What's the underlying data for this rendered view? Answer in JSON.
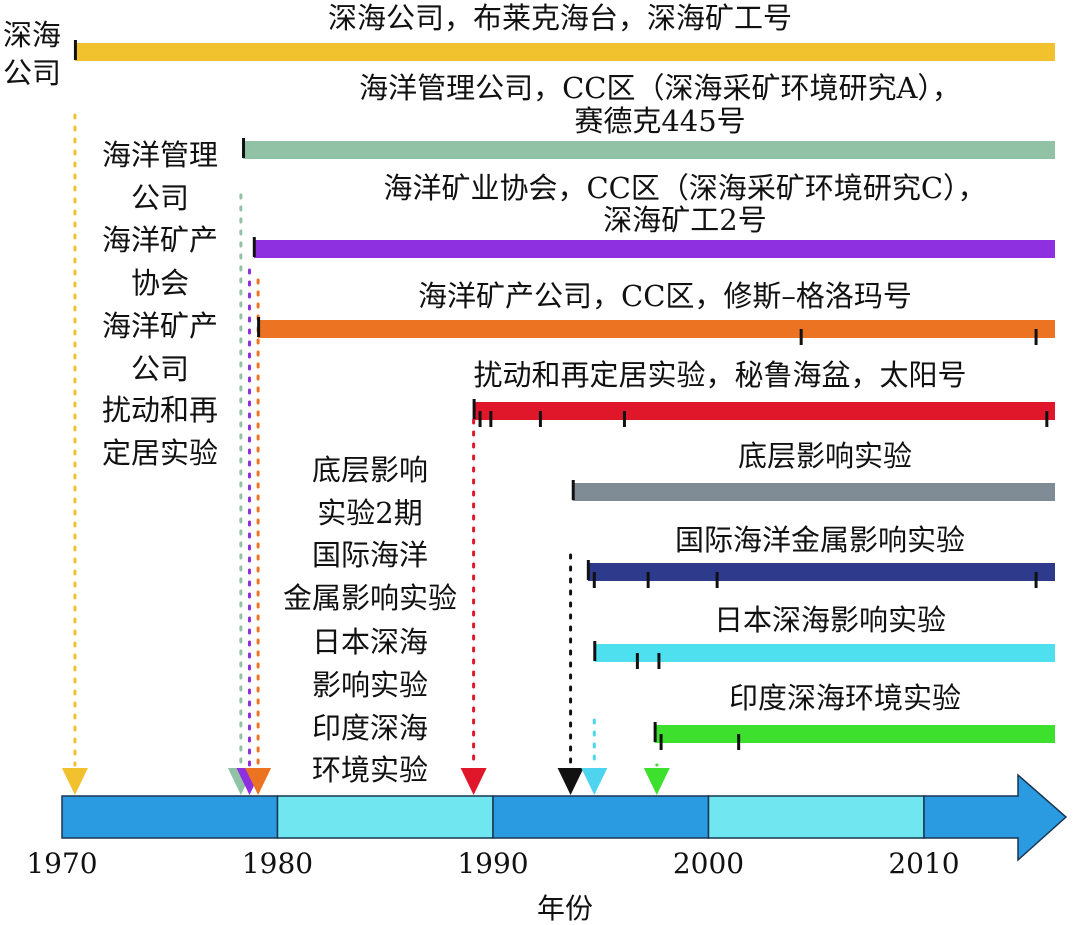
{
  "axis": {
    "title": "年份",
    "ticks": [
      "1970",
      "1980",
      "1990",
      "2000",
      "2010"
    ],
    "band_colors": [
      "#2a9be0",
      "#6fe6f0"
    ]
  },
  "programs": [
    {
      "label": [
        "深海公司，布莱克海台，深海矿工号"
      ],
      "side": [
        "深海",
        "公司"
      ],
      "start": 1970.6,
      "color": "#f2c12e",
      "marks": []
    },
    {
      "label": [
        "海洋管理公司，CC区（深海采矿环境研究A），",
        "赛德克445号"
      ],
      "side": [
        "海洋管理",
        "公司"
      ],
      "start": 1978.4,
      "color": "#92c2a6",
      "marks": []
    },
    {
      "label": [
        "海洋矿业协会，CC区（深海采矿环境研究C），",
        "深海矿工2号"
      ],
      "side": [
        "海洋矿产",
        "协会"
      ],
      "start": 1978.9,
      "color": "#8e2fe0",
      "marks": []
    },
    {
      "label": [
        "海洋矿产公司，CC区，修斯–格洛玛号"
      ],
      "side": [
        "海洋矿产",
        "公司"
      ],
      "start": 1979.1,
      "color": "#ec7322",
      "marks": [
        2004.3,
        2015.2
      ]
    },
    {
      "label": [
        "扰动和再定居实验，秘鲁海盆，太阳号"
      ],
      "side": [
        "扰动和再",
        "定居实验"
      ],
      "start": 1989.1,
      "color": "#e0162b",
      "marks": [
        1989.4,
        1989.9,
        1992.2,
        1996.1,
        2015.7
      ]
    },
    {
      "label": [
        "底层影响实验"
      ],
      "side": [
        "底层影响",
        "实验2期"
      ],
      "start": 1993.7,
      "color": "#7f8c95",
      "marks": []
    },
    {
      "label": [
        "国际海洋金属影响实验"
      ],
      "side": [
        "国际海洋",
        "金属影响实验"
      ],
      "start": 1994.4,
      "color": "#2e3a8c",
      "marks": [
        1994.7,
        1997.2,
        2000.4,
        2015.2
      ]
    },
    {
      "label": [
        "日本深海影响实验"
      ],
      "side": [
        "日本深海",
        "影响实验"
      ],
      "start": 1994.7,
      "color": "#4fe0f0",
      "marks": [
        1996.7,
        1997.7
      ]
    },
    {
      "label": [
        "印度深海环境实验"
      ],
      "side": [
        "印度深海",
        "环境实验"
      ],
      "start": 1997.5,
      "color": "#3ee02e",
      "marks": [
        1997.8,
        2001.4
      ]
    }
  ],
  "arrows": [
    {
      "year": 1970.6,
      "color": "#f2c12e"
    },
    {
      "year": 1978.3,
      "color": "#92c2a6"
    },
    {
      "year": 1978.7,
      "color": "#8e2fe0"
    },
    {
      "year": 1979.1,
      "color": "#ec7322"
    },
    {
      "year": 1989.1,
      "color": "#e0162b"
    },
    {
      "year": 1993.6,
      "color": "#111111"
    },
    {
      "year": 1994.7,
      "color": "#4fd4f0"
    },
    {
      "year": 1997.6,
      "color": "#3ee02e"
    }
  ]
}
